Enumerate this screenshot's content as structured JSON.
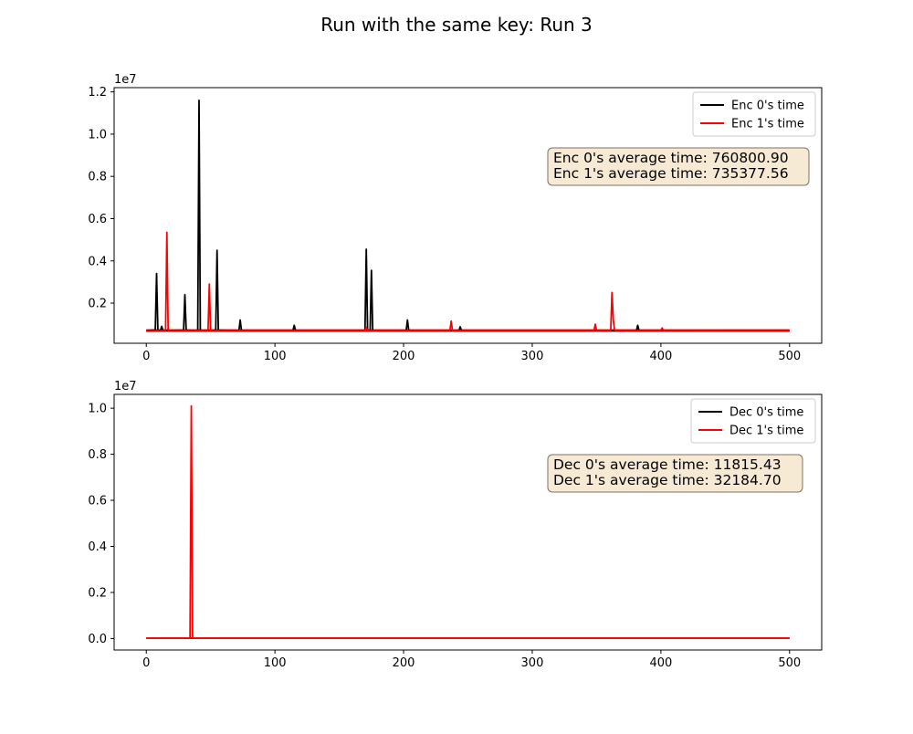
{
  "figure": {
    "title": "Run with the same key: Run 3"
  },
  "colors": {
    "series_0": "#000000",
    "series_1": "#ff0000",
    "annotation_fill": "#f7ead5",
    "annotation_edge": "#7f7163"
  },
  "chart_data": [
    {
      "type": "line",
      "name": "enc",
      "xlim": [
        -25,
        525
      ],
      "ylim": [
        100000,
        12200000
      ],
      "x_ticks": [
        0,
        100,
        200,
        300,
        400,
        500
      ],
      "x_tick_labels": [
        "0",
        "100",
        "200",
        "300",
        "400",
        "500"
      ],
      "y_ticks": [
        2000000,
        4000000,
        6000000,
        8000000,
        10000000,
        12000000
      ],
      "y_tick_labels": [
        "0.2",
        "0.4",
        "0.6",
        "0.8",
        "1.0",
        "1.2"
      ],
      "y_scale_label": "1e7",
      "legend": {
        "position": "top-right",
        "entries": [
          "Enc 0's time",
          "Enc 1's time"
        ]
      },
      "annotation": {
        "position": "upper-right",
        "lines": [
          "Enc 0's average time: 760800.90",
          "Enc 1's average time: 735377.56"
        ]
      },
      "baseline": [
        700000,
        700000
      ],
      "series": [
        {
          "name": "Enc 0's time",
          "color": "#000000",
          "points": [
            [
              0,
              700000
            ],
            [
              7,
              730000
            ],
            [
              8,
              3400000
            ],
            [
              9,
              720000
            ],
            [
              11,
              700000
            ],
            [
              12,
              900000
            ],
            [
              13,
              700000
            ],
            [
              29,
              720000
            ],
            [
              30,
              2400000
            ],
            [
              31,
              720000
            ],
            [
              40,
              700000
            ],
            [
              41,
              11600000
            ],
            [
              42,
              700000
            ],
            [
              54,
              720000
            ],
            [
              55,
              4500000
            ],
            [
              56,
              720000
            ],
            [
              72,
              700000
            ],
            [
              73,
              1200000
            ],
            [
              74,
              700000
            ],
            [
              114,
              700000
            ],
            [
              115,
              950000
            ],
            [
              116,
              700000
            ],
            [
              170,
              700000
            ],
            [
              171,
              4550000
            ],
            [
              172,
              700000
            ],
            [
              174,
              700000
            ],
            [
              175,
              3550000
            ],
            [
              176,
              700000
            ],
            [
              202,
              700000
            ],
            [
              203,
              1200000
            ],
            [
              204,
              700000
            ],
            [
              243,
              700000
            ],
            [
              244,
              880000
            ],
            [
              245,
              700000
            ],
            [
              381,
              700000
            ],
            [
              382,
              950000
            ],
            [
              383,
              700000
            ],
            [
              500,
              700000
            ]
          ]
        },
        {
          "name": "Enc 1's time",
          "color": "#ff0000",
          "points": [
            [
              0,
              690000
            ],
            [
              15,
              700000
            ],
            [
              16,
              5350000
            ],
            [
              17,
              700000
            ],
            [
              48,
              700000
            ],
            [
              49,
              2900000
            ],
            [
              50,
              700000
            ],
            [
              170,
              700000
            ],
            [
              171,
              850000
            ],
            [
              172,
              700000
            ],
            [
              236,
              700000
            ],
            [
              237,
              1150000
            ],
            [
              238,
              700000
            ],
            [
              348,
              700000
            ],
            [
              349,
              1000000
            ],
            [
              350,
              700000
            ],
            [
              361,
              700000
            ],
            [
              362,
              2500000
            ],
            [
              363,
              1200000
            ],
            [
              364,
              720000
            ],
            [
              365,
              700000
            ],
            [
              400,
              700000
            ],
            [
              401,
              820000
            ],
            [
              402,
              700000
            ],
            [
              500,
              690000
            ]
          ]
        }
      ]
    },
    {
      "type": "line",
      "name": "dec",
      "xlim": [
        -25,
        525
      ],
      "ylim": [
        -500000,
        10600000
      ],
      "x_ticks": [
        0,
        100,
        200,
        300,
        400,
        500
      ],
      "x_tick_labels": [
        "0",
        "100",
        "200",
        "300",
        "400",
        "500"
      ],
      "y_ticks": [
        0,
        2000000,
        4000000,
        6000000,
        8000000,
        10000000
      ],
      "y_tick_labels": [
        "0.0",
        "0.2",
        "0.4",
        "0.6",
        "0.8",
        "1.0"
      ],
      "y_scale_label": "1e7",
      "legend": {
        "position": "top-right",
        "entries": [
          "Dec 0's time",
          "Dec 1's time"
        ]
      },
      "annotation": {
        "position": "upper-right",
        "lines": [
          "Dec 0's average time: 11815.43",
          "Dec 1's average time: 32184.70"
        ]
      },
      "series": [
        {
          "name": "Dec 0's time",
          "color": "#000000",
          "points": [
            [
              0,
              11815
            ],
            [
              500,
              11815
            ]
          ]
        },
        {
          "name": "Dec 1's time",
          "color": "#ff0000",
          "points": [
            [
              0,
              12000
            ],
            [
              34,
              12000
            ],
            [
              35,
              10100000
            ],
            [
              36,
              12000
            ],
            [
              500,
              12000
            ]
          ]
        }
      ]
    }
  ]
}
